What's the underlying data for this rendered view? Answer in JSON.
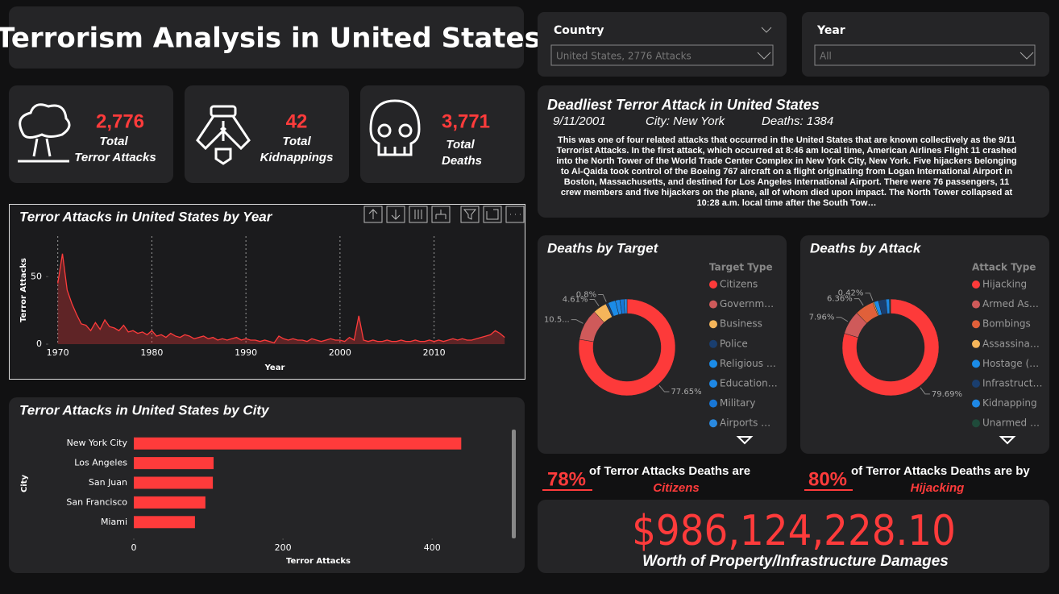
{
  "header": {
    "title": "Terrorism Analysis in United States"
  },
  "slicers": [
    {
      "label": "Country",
      "value": "United States, 2776 Attacks"
    },
    {
      "label": "Year",
      "value": "All"
    }
  ],
  "kpis": [
    {
      "value": "2,776",
      "label": [
        "Total",
        "Terror Attacks"
      ]
    },
    {
      "value": "42",
      "label": [
        "Total",
        "Kidnappings"
      ]
    },
    {
      "value": "3,771",
      "label": [
        "Total",
        "Deaths"
      ]
    }
  ],
  "story": {
    "title": "Deadliest Terror Attack in United States",
    "date": "9/11/2001",
    "city": "City: New York",
    "deaths": "Deaths: 1384",
    "text": "This was one of four related attacks that occurred in the United States that are known collectively as the 9/11 Terrorist Attacks. In the first attack, which occurred at 8:46 am local time, American Airlines Flight 11 crashed into the North Tower of the World Trade Center Complex in New York City, New York. Five hijackers belonging to Al-Qaida took control of the Boeing 767 aircraft on a flight originating from Logan International Airport in Boston, Massachusetts, and destined for Los Angeles International Airport. There were 76 passengers, 11 crew members and five hijackers on the plane, all of whom died upon impact. The North Tower collapsed at 10:28 a.m. local time after the South Tow…"
  },
  "callouts": [
    {
      "percent": "78%",
      "text": "of Terror Attacks Deaths are",
      "subject": "Citizens"
    },
    {
      "percent": "80%",
      "text": "of Terror Attacks Deaths are by",
      "subject": "Hijacking"
    }
  ],
  "damages": {
    "value": "$986,124,228.10",
    "label": "Worth of Property/Infrastructure Damages"
  },
  "chart_data": [
    {
      "type": "line",
      "title": "Terror Attacks in United States by Year",
      "x_label": "Year",
      "y_label": "Terror Attacks",
      "color": "#ff3b3b",
      "area": true,
      "grid": true,
      "x": [
        1970,
        1970.5,
        1971,
        1971.5,
        1972,
        1972.5,
        1973,
        1973.5,
        1974,
        1974.5,
        1975,
        1975.5,
        1976,
        1976.5,
        1977,
        1977.5,
        1978,
        1978.5,
        1979,
        1979.5,
        1980,
        1980.5,
        1981,
        1981.5,
        1982,
        1982.5,
        1983,
        1983.5,
        1984,
        1984.5,
        1985,
        1985.5,
        1986,
        1986.5,
        1987,
        1987.5,
        1988,
        1988.5,
        1989,
        1989.5,
        1990,
        1990.5,
        1991,
        1991.5,
        1992,
        1992.5,
        1993,
        1993.5,
        1994,
        1994.5,
        1995,
        1995.5,
        1996,
        1996.5,
        1997,
        1997.5,
        1998,
        1998.5,
        1999,
        1999.5,
        2000,
        2000.5,
        2001,
        2001.5,
        2002,
        2002.5,
        2003,
        2003.5,
        2004,
        2004.5,
        2005,
        2005.5,
        2006,
        2006.5,
        2007,
        2007.5,
        2008,
        2008.5,
        2009,
        2009.5,
        2010,
        2010.5,
        2011,
        2011.5,
        2012,
        2012.5,
        2013,
        2013.5,
        2014,
        2014.5,
        2015,
        2015.5,
        2016,
        2016.5,
        2017,
        2017.5
      ],
      "values": [
        45,
        67,
        40,
        30,
        22,
        15,
        14,
        10,
        16,
        11,
        18,
        13,
        12,
        10,
        14,
        9,
        10,
        8,
        9,
        7,
        10,
        6,
        7,
        5,
        8,
        6,
        5,
        7,
        6,
        4,
        5,
        6,
        4,
        5,
        3,
        4,
        3,
        4,
        5,
        3,
        4,
        3,
        3,
        2,
        3,
        2,
        1,
        6,
        4,
        3,
        4,
        3,
        3,
        2,
        4,
        3,
        2,
        3,
        4,
        3,
        3,
        2,
        5,
        3,
        21,
        3,
        2,
        3,
        2,
        2,
        3,
        2,
        2,
        3,
        2,
        2,
        3,
        2,
        2,
        3,
        2,
        3,
        2,
        3,
        4,
        3,
        4,
        3,
        3,
        4,
        5,
        6,
        7,
        10,
        8,
        5
      ],
      "xlim": [
        1969,
        2018
      ],
      "xticks": [
        1970,
        1980,
        1990,
        2000,
        2010
      ],
      "ylim": [
        0,
        80
      ],
      "yticks": [
        0,
        50
      ]
    },
    {
      "type": "bar",
      "orientation": "horizontal",
      "title": "Terror Attacks in United States by City",
      "x_label": "Terror Attacks",
      "y_label": "City",
      "color": "#ff3b3b",
      "grid": false,
      "categories": [
        "New York City",
        "Los Angeles",
        "San Juan",
        "San Francisco",
        "Miami"
      ],
      "values": [
        439,
        107,
        106,
        96,
        82
      ],
      "xlim": [
        0,
        470
      ],
      "xticks": [
        0,
        200,
        400
      ]
    },
    {
      "type": "donut",
      "title": "Deaths by Target",
      "legend_title": "Target Type",
      "categories": [
        "Citizens",
        "Governm…",
        "Business",
        "Police",
        "Religious …",
        "Education…",
        "Military",
        "Airports …"
      ],
      "values": [
        77.65,
        10.5,
        4.61,
        0.8,
        2.5,
        1.5,
        1.4,
        1.0
      ],
      "value_labels": [
        "77.65%",
        "10.5...",
        "4.61%",
        "0.8%",
        null,
        null,
        null,
        null
      ],
      "colors": [
        "#fd3a3a",
        "#cf5a5a",
        "#f5b55a",
        "#1a3e6e",
        "#1b8ce8",
        "#1e88e5",
        "#1877d6",
        "#2a8ae0"
      ]
    },
    {
      "type": "donut",
      "title": "Deaths by Attack",
      "legend_title": "Attack Type",
      "categories": [
        "Hijacking",
        "Armed As…",
        "Bombings",
        "Assassina…",
        "Hostage (…",
        "Infrastruct…",
        "Kidnapping",
        "Unarmed …"
      ],
      "values": [
        79.69,
        7.96,
        6.36,
        0.42,
        1.5,
        2.5,
        1.2,
        0.37
      ],
      "value_labels": [
        "79.69%",
        "7.96%",
        "6.36%",
        "0.42%",
        null,
        null,
        null,
        null
      ],
      "colors": [
        "#fd3a3a",
        "#cf5a5a",
        "#e0603a",
        "#f5b55a",
        "#1b8ce8",
        "#1a3e6e",
        "#1e88e5",
        "#1f4a3a"
      ]
    }
  ]
}
